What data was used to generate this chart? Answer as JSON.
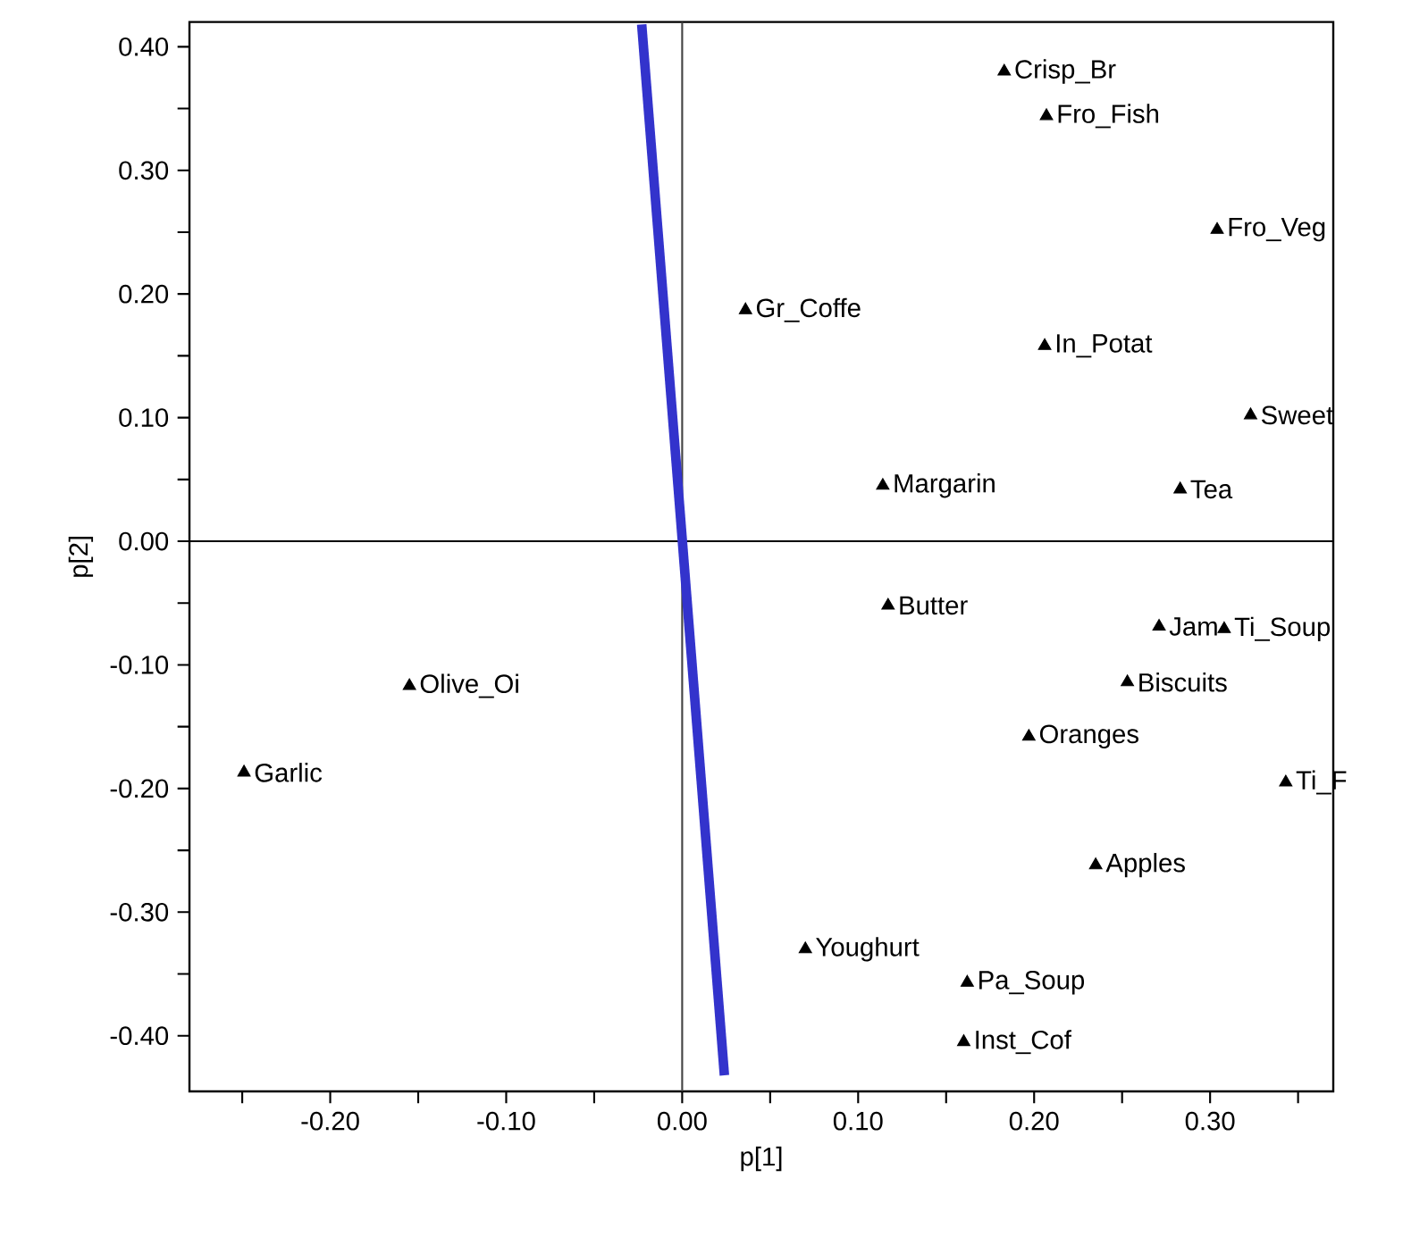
{
  "chart_data": {
    "type": "scatter",
    "xlabel": "p[1]",
    "ylabel": "p[2]",
    "xlim": [
      -0.28,
      0.37
    ],
    "ylim": [
      -0.445,
      0.42
    ],
    "xticks": [
      {
        "value": -0.25,
        "label": null
      },
      {
        "value": -0.2,
        "label": "-0.20"
      },
      {
        "value": -0.15,
        "label": null
      },
      {
        "value": -0.1,
        "label": "-0.10"
      },
      {
        "value": -0.05,
        "label": null
      },
      {
        "value": 0,
        "label": "0.00"
      },
      {
        "value": 0.05,
        "label": null
      },
      {
        "value": 0.1,
        "label": "0.10"
      },
      {
        "value": 0.15,
        "label": null
      },
      {
        "value": 0.2,
        "label": "0.20"
      },
      {
        "value": 0.25,
        "label": null
      },
      {
        "value": 0.3,
        "label": "0.30"
      },
      {
        "value": 0.35,
        "label": null
      }
    ],
    "yticks": [
      {
        "value": -0.4,
        "label": "-0.40"
      },
      {
        "value": -0.35,
        "label": null
      },
      {
        "value": -0.3,
        "label": "-0.30"
      },
      {
        "value": -0.25,
        "label": null
      },
      {
        "value": -0.2,
        "label": "-0.20"
      },
      {
        "value": -0.15,
        "label": null
      },
      {
        "value": -0.1,
        "label": "-0.10"
      },
      {
        "value": -0.05,
        "label": null
      },
      {
        "value": 0,
        "label": "0.00"
      },
      {
        "value": 0.05,
        "label": null
      },
      {
        "value": 0.1,
        "label": "0.10"
      },
      {
        "value": 0.15,
        "label": null
      },
      {
        "value": 0.2,
        "label": "0.20"
      },
      {
        "value": 0.25,
        "label": null
      },
      {
        "value": 0.3,
        "label": "0.30"
      },
      {
        "value": 0.35,
        "label": null
      },
      {
        "value": 0.4,
        "label": "0.40"
      }
    ],
    "grid": false,
    "marker": "triangle",
    "ref_lines": [
      {
        "axis": "x",
        "value": 0,
        "color": "#444444"
      },
      {
        "axis": "y",
        "value": 0,
        "color": "#000000"
      }
    ],
    "series": [
      {
        "type": "scatter",
        "color": "#000000",
        "x": [
          0.183,
          0.207,
          0.304,
          0.036,
          0.206,
          0.323,
          0.114,
          0.283,
          0.117,
          0.271,
          0.308,
          0.253,
          0.197,
          0.343,
          0.235,
          0.07,
          0.162,
          0.16,
          -0.155,
          -0.249
        ],
        "values": [
          0.38,
          0.344,
          0.252,
          0.187,
          0.158,
          0.102,
          0.045,
          0.042,
          -0.052,
          -0.069,
          -0.071,
          -0.114,
          -0.158,
          -0.195,
          -0.262,
          -0.33,
          -0.357,
          -0.405,
          -0.117,
          -0.187
        ]
      },
      {
        "type": "line",
        "color": "#3333cc",
        "marker": "none",
        "x": [
          -0.023,
          0.024
        ],
        "values": [
          0.418,
          -0.432
        ]
      }
    ],
    "annotations": [
      {
        "text": "Crisp_Br",
        "x": 0.183,
        "y": 0.38
      },
      {
        "text": "Fro_Fish",
        "x": 0.207,
        "y": 0.344
      },
      {
        "text": "Fro_Veg",
        "x": 0.304,
        "y": 0.252
      },
      {
        "text": "Gr_Coffe",
        "x": 0.036,
        "y": 0.187
      },
      {
        "text": "In_Potat",
        "x": 0.206,
        "y": 0.158
      },
      {
        "text": "Sweet",
        "x": 0.323,
        "y": 0.102
      },
      {
        "text": "Margarin",
        "x": 0.114,
        "y": 0.045
      },
      {
        "text": "Tea",
        "x": 0.283,
        "y": 0.042
      },
      {
        "text": "Butter",
        "x": 0.117,
        "y": -0.052
      },
      {
        "text": "Jam",
        "x": 0.271,
        "y": -0.069
      },
      {
        "text": "Ti_Soup",
        "x": 0.308,
        "y": -0.071
      },
      {
        "text": "Biscuits",
        "x": 0.253,
        "y": -0.114
      },
      {
        "text": "Oranges",
        "x": 0.197,
        "y": -0.158
      },
      {
        "text": "Ti_F",
        "x": 0.343,
        "y": -0.195
      },
      {
        "text": "Apples",
        "x": 0.235,
        "y": -0.262
      },
      {
        "text": "Youghurt",
        "x": 0.07,
        "y": -0.33
      },
      {
        "text": "Pa_Soup",
        "x": 0.162,
        "y": -0.357
      },
      {
        "text": "Inst_Cof",
        "x": 0.16,
        "y": -0.405
      },
      {
        "text": "Olive_Oi",
        "x": -0.155,
        "y": -0.117
      },
      {
        "text": "Garlic",
        "x": -0.249,
        "y": -0.187
      }
    ]
  }
}
